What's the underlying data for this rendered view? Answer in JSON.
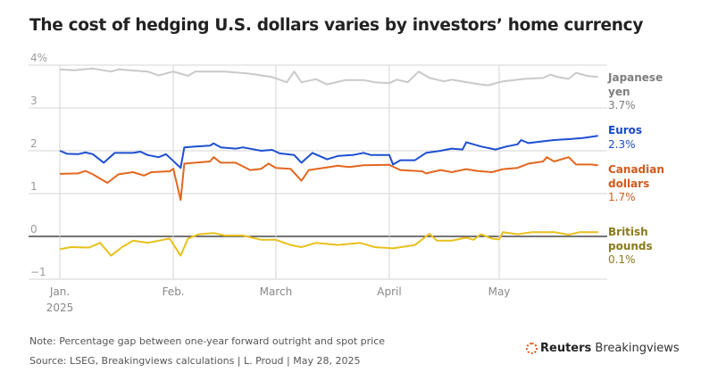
{
  "chart_data": {
    "type": "line",
    "title": "The cost of hedging U.S. dollars varies by investors’ home currency",
    "y_ticks": [
      "4%",
      "3",
      "2",
      "1",
      "0",
      "−1"
    ],
    "y_tick_values": [
      4,
      3,
      2,
      1,
      0,
      -1
    ],
    "ylim": [
      -1,
      4
    ],
    "x_ticks": [
      {
        "label": "Jan.",
        "sub": "2025",
        "date": "2025-01-01"
      },
      {
        "label": "Feb.",
        "sub": "",
        "date": "2025-02-01"
      },
      {
        "label": "March",
        "sub": "",
        "date": "2025-03-01"
      },
      {
        "label": "April",
        "sub": "",
        "date": "2025-04-01"
      },
      {
        "label": "May",
        "sub": "",
        "date": "2025-05-01"
      }
    ],
    "grid": true,
    "series": [
      {
        "name": "Japanese yen",
        "name_lines": [
          "Japanese",
          "yen"
        ],
        "end_label": "3.7%",
        "color": "#c9c9c9",
        "label_color": "#7d7d7d",
        "points": [
          [
            "2025-01-01",
            3.9
          ],
          [
            "2025-01-05",
            3.88
          ],
          [
            "2025-01-10",
            3.92
          ],
          [
            "2025-01-15",
            3.85
          ],
          [
            "2025-01-17",
            3.9
          ],
          [
            "2025-01-20",
            3.88
          ],
          [
            "2025-01-25",
            3.85
          ],
          [
            "2025-01-28",
            3.76
          ],
          [
            "2025-02-01",
            3.85
          ],
          [
            "2025-02-05",
            3.75
          ],
          [
            "2025-02-07",
            3.85
          ],
          [
            "2025-02-15",
            3.85
          ],
          [
            "2025-02-22",
            3.8
          ],
          [
            "2025-02-28",
            3.72
          ],
          [
            "2025-03-04",
            3.6
          ],
          [
            "2025-03-06",
            3.85
          ],
          [
            "2025-03-08",
            3.6
          ],
          [
            "2025-03-12",
            3.67
          ],
          [
            "2025-03-15",
            3.55
          ],
          [
            "2025-03-20",
            3.65
          ],
          [
            "2025-03-25",
            3.65
          ],
          [
            "2025-03-28",
            3.6
          ],
          [
            "2025-04-01",
            3.58
          ],
          [
            "2025-04-03",
            3.66
          ],
          [
            "2025-04-06",
            3.6
          ],
          [
            "2025-04-09",
            3.85
          ],
          [
            "2025-04-12",
            3.7
          ],
          [
            "2025-04-16",
            3.62
          ],
          [
            "2025-04-18",
            3.66
          ],
          [
            "2025-04-25",
            3.56
          ],
          [
            "2025-04-28",
            3.53
          ],
          [
            "2025-05-02",
            3.62
          ],
          [
            "2025-05-08",
            3.68
          ],
          [
            "2025-05-13",
            3.7
          ],
          [
            "2025-05-15",
            3.78
          ],
          [
            "2025-05-17",
            3.72
          ],
          [
            "2025-05-20",
            3.68
          ],
          [
            "2025-05-22",
            3.82
          ],
          [
            "2025-05-25",
            3.75
          ],
          [
            "2025-05-28",
            3.72
          ]
        ]
      },
      {
        "name": "Euros",
        "name_lines": [
          "Euros"
        ],
        "end_label": "2.3%",
        "color": "#1d4fd1",
        "label_color": "#1a49c7",
        "points": [
          [
            "2025-01-01",
            2.0
          ],
          [
            "2025-01-03",
            1.93
          ],
          [
            "2025-01-06",
            1.92
          ],
          [
            "2025-01-08",
            1.96
          ],
          [
            "2025-01-10",
            1.92
          ],
          [
            "2025-01-13",
            1.72
          ],
          [
            "2025-01-16",
            1.95
          ],
          [
            "2025-01-21",
            1.95
          ],
          [
            "2025-01-23",
            1.98
          ],
          [
            "2025-01-25",
            1.9
          ],
          [
            "2025-01-28",
            1.85
          ],
          [
            "2025-01-30",
            1.92
          ],
          [
            "2025-02-03",
            1.6
          ],
          [
            "2025-02-04",
            2.08
          ],
          [
            "2025-02-07",
            2.1
          ],
          [
            "2025-02-11",
            2.12
          ],
          [
            "2025-02-12",
            2.17
          ],
          [
            "2025-02-14",
            2.08
          ],
          [
            "2025-02-18",
            2.05
          ],
          [
            "2025-02-20",
            2.08
          ],
          [
            "2025-02-25",
            2.0
          ],
          [
            "2025-02-28",
            2.02
          ],
          [
            "2025-03-02",
            1.94
          ],
          [
            "2025-03-06",
            1.9
          ],
          [
            "2025-03-08",
            1.72
          ],
          [
            "2025-03-11",
            1.95
          ],
          [
            "2025-03-15",
            1.8
          ],
          [
            "2025-03-18",
            1.88
          ],
          [
            "2025-03-22",
            1.9
          ],
          [
            "2025-03-25",
            1.95
          ],
          [
            "2025-03-27",
            1.9
          ],
          [
            "2025-04-01",
            1.9
          ],
          [
            "2025-04-02",
            1.68
          ],
          [
            "2025-04-04",
            1.78
          ],
          [
            "2025-04-08",
            1.78
          ],
          [
            "2025-04-11",
            1.95
          ],
          [
            "2025-04-15",
            2.0
          ],
          [
            "2025-04-18",
            2.05
          ],
          [
            "2025-04-21",
            2.03
          ],
          [
            "2025-04-22",
            2.2
          ],
          [
            "2025-04-26",
            2.1
          ],
          [
            "2025-04-30",
            2.03
          ],
          [
            "2025-05-03",
            2.1
          ],
          [
            "2025-05-06",
            2.15
          ],
          [
            "2025-05-07",
            2.25
          ],
          [
            "2025-05-09",
            2.18
          ],
          [
            "2025-05-13",
            2.22
          ],
          [
            "2025-05-16",
            2.25
          ],
          [
            "2025-05-20",
            2.27
          ],
          [
            "2025-05-24",
            2.3
          ],
          [
            "2025-05-28",
            2.35
          ]
        ]
      },
      {
        "name": "Canadian dollars",
        "name_lines": [
          "Canadian",
          "dollars"
        ],
        "end_label": "1.7%",
        "color": "#e2671f",
        "label_color": "#d1591b",
        "points": [
          [
            "2025-01-01",
            1.46
          ],
          [
            "2025-01-06",
            1.47
          ],
          [
            "2025-01-08",
            1.53
          ],
          [
            "2025-01-10",
            1.45
          ],
          [
            "2025-01-14",
            1.25
          ],
          [
            "2025-01-17",
            1.45
          ],
          [
            "2025-01-21",
            1.5
          ],
          [
            "2025-01-24",
            1.42
          ],
          [
            "2025-01-26",
            1.5
          ],
          [
            "2025-01-31",
            1.52
          ],
          [
            "2025-02-01",
            1.58
          ],
          [
            "2025-02-03",
            0.85
          ],
          [
            "2025-02-04",
            1.7
          ],
          [
            "2025-02-07",
            1.72
          ],
          [
            "2025-02-11",
            1.75
          ],
          [
            "2025-02-12",
            1.85
          ],
          [
            "2025-02-14",
            1.72
          ],
          [
            "2025-02-18",
            1.72
          ],
          [
            "2025-02-22",
            1.55
          ],
          [
            "2025-02-25",
            1.58
          ],
          [
            "2025-02-27",
            1.7
          ],
          [
            "2025-03-01",
            1.6
          ],
          [
            "2025-03-05",
            1.58
          ],
          [
            "2025-03-08",
            1.3
          ],
          [
            "2025-03-10",
            1.55
          ],
          [
            "2025-03-14",
            1.6
          ],
          [
            "2025-03-18",
            1.65
          ],
          [
            "2025-03-21",
            1.62
          ],
          [
            "2025-03-25",
            1.66
          ],
          [
            "2025-04-01",
            1.67
          ],
          [
            "2025-04-04",
            1.55
          ],
          [
            "2025-04-10",
            1.52
          ],
          [
            "2025-04-11",
            1.47
          ],
          [
            "2025-04-15",
            1.55
          ],
          [
            "2025-04-18",
            1.5
          ],
          [
            "2025-04-22",
            1.57
          ],
          [
            "2025-04-25",
            1.53
          ],
          [
            "2025-04-29",
            1.5
          ],
          [
            "2025-05-02",
            1.57
          ],
          [
            "2025-05-06",
            1.6
          ],
          [
            "2025-05-09",
            1.7
          ],
          [
            "2025-05-13",
            1.75
          ],
          [
            "2025-05-14",
            1.85
          ],
          [
            "2025-05-16",
            1.75
          ],
          [
            "2025-05-20",
            1.85
          ],
          [
            "2025-05-22",
            1.68
          ],
          [
            "2025-05-26",
            1.68
          ],
          [
            "2025-05-28",
            1.66
          ]
        ]
      },
      {
        "name": "British pounds",
        "name_lines": [
          "British",
          "pounds"
        ],
        "end_label": "0.1%",
        "color": "#e8c11c",
        "label_color": "#8a7a1c",
        "points": [
          [
            "2025-01-01",
            -0.3
          ],
          [
            "2025-01-04",
            -0.25
          ],
          [
            "2025-01-09",
            -0.26
          ],
          [
            "2025-01-12",
            -0.15
          ],
          [
            "2025-01-15",
            -0.45
          ],
          [
            "2025-01-18",
            -0.25
          ],
          [
            "2025-01-21",
            -0.1
          ],
          [
            "2025-01-25",
            -0.15
          ],
          [
            "2025-01-28",
            -0.1
          ],
          [
            "2025-01-31",
            -0.05
          ],
          [
            "2025-02-03",
            -0.45
          ],
          [
            "2025-02-05",
            -0.05
          ],
          [
            "2025-02-08",
            0.05
          ],
          [
            "2025-02-12",
            0.08
          ],
          [
            "2025-02-15",
            0.02
          ],
          [
            "2025-02-20",
            0.02
          ],
          [
            "2025-02-25",
            -0.08
          ],
          [
            "2025-03-01",
            -0.08
          ],
          [
            "2025-03-05",
            -0.2
          ],
          [
            "2025-03-08",
            -0.25
          ],
          [
            "2025-03-12",
            -0.15
          ],
          [
            "2025-03-18",
            -0.2
          ],
          [
            "2025-03-24",
            -0.15
          ],
          [
            "2025-03-28",
            -0.25
          ],
          [
            "2025-04-02",
            -0.28
          ],
          [
            "2025-04-08",
            -0.2
          ],
          [
            "2025-04-12",
            0.06
          ],
          [
            "2025-04-14",
            -0.1
          ],
          [
            "2025-04-18",
            -0.1
          ],
          [
            "2025-04-22",
            -0.03
          ],
          [
            "2025-04-24",
            -0.08
          ],
          [
            "2025-04-26",
            0.05
          ],
          [
            "2025-04-29",
            -0.05
          ],
          [
            "2025-05-01",
            -0.07
          ],
          [
            "2025-05-02",
            0.1
          ],
          [
            "2025-05-06",
            0.05
          ],
          [
            "2025-05-10",
            0.1
          ],
          [
            "2025-05-16",
            0.1
          ],
          [
            "2025-05-20",
            0.04
          ],
          [
            "2025-05-23",
            0.1
          ],
          [
            "2025-05-28",
            0.1
          ]
        ]
      }
    ]
  },
  "footer": {
    "note": "Note: Percentage gap between one-year forward outright and spot price",
    "source": "Source: LSEG, Breakingviews calculations | L. Proud | May 28, 2025",
    "logo_bold": "Reuters",
    "logo_rest": "Breakingviews"
  }
}
